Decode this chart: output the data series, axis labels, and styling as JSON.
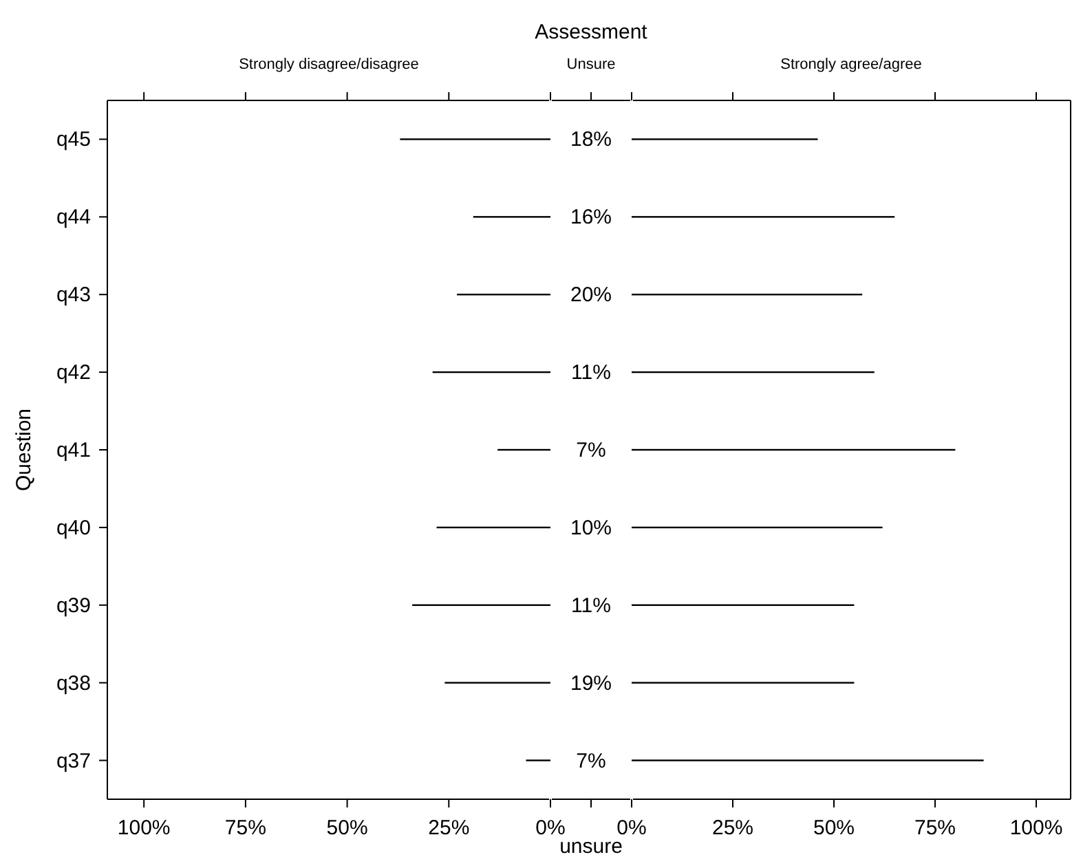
{
  "chart_data": [
    {
      "type": "bar",
      "orientation": "horizontal",
      "x2label": "Strongly disagree/disagree",
      "ylabel": "Question",
      "categories": [
        "q45",
        "q44",
        "q43",
        "q42",
        "q41",
        "q40",
        "q39",
        "q38",
        "q37"
      ],
      "series": [
        {
          "color": "#000000",
          "values": [
            37,
            19,
            23,
            29,
            13,
            28,
            34,
            26,
            6
          ]
        }
      ],
      "xlim": [
        109,
        0
      ],
      "xticks": [
        {
          "value": 100,
          "label": "100%"
        },
        {
          "value": 75,
          "label": "75%"
        },
        {
          "value": 50,
          "label": "50%"
        },
        {
          "value": 25,
          "label": "25%"
        },
        {
          "value": 0,
          "label": "0%"
        }
      ]
    },
    {
      "type": "other",
      "title": "Assessment",
      "x2label": "Unsure",
      "xlabel": "unsure",
      "value_labels": [
        "18%",
        "16%",
        "20%",
        "11%",
        "7%",
        "10%",
        "11%",
        "19%",
        "7%"
      ]
    },
    {
      "type": "bar",
      "orientation": "horizontal",
      "x2label": "Strongly agree/agree",
      "categories": [
        null,
        null,
        null,
        null,
        null,
        null,
        null,
        null,
        null
      ],
      "series": [
        {
          "color": "#000000",
          "values": [
            46,
            65,
            57,
            60,
            80,
            62,
            55,
            55,
            87
          ]
        }
      ],
      "xlim": [
        0,
        108.5
      ],
      "xticks": [
        {
          "value": 0,
          "label": "0%"
        },
        {
          "value": 25,
          "label": "25%"
        },
        {
          "value": 50,
          "label": "50%"
        },
        {
          "value": 75,
          "label": "75%"
        },
        {
          "value": 100,
          "label": "100%"
        }
      ]
    }
  ]
}
